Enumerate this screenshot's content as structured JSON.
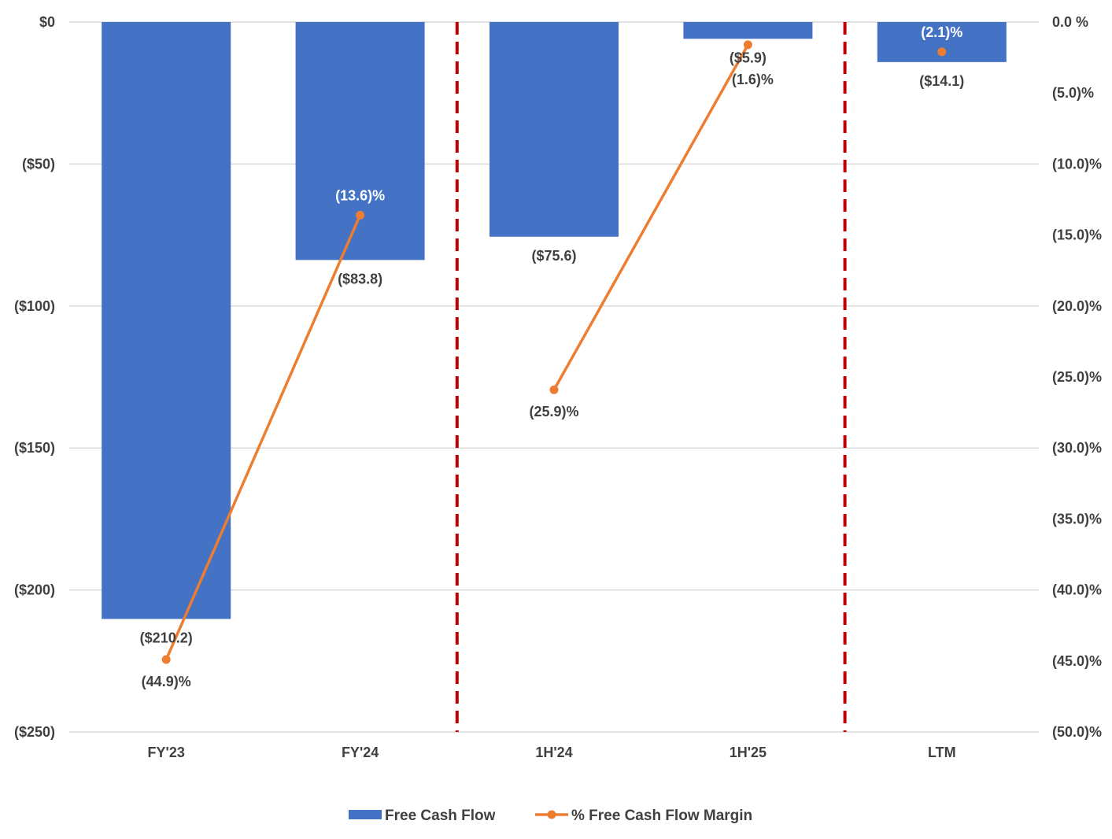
{
  "chart_data": {
    "type": "bar+line",
    "categories": [
      "FY'23",
      "FY'24",
      "1H'24",
      "1H'25",
      "LTM"
    ],
    "series": [
      {
        "name": "Free Cash Flow",
        "type": "bar",
        "axis": "left",
        "values": [
          -210.2,
          -83.8,
          -75.6,
          -5.9,
          -14.1
        ],
        "labels": [
          "($210.2)",
          "($83.8)",
          "($75.6)",
          "($5.9)",
          "($14.1)"
        ],
        "color": "#4472C4"
      },
      {
        "name": "% Free Cash Flow Margin",
        "type": "line",
        "axis": "right",
        "values": [
          -44.9,
          -13.6,
          -25.9,
          -1.6,
          -2.1
        ],
        "labels": [
          "(44.9)%",
          "(13.6)%",
          "(25.9)%",
          "(1.6)%",
          "(2.1)%"
        ],
        "segments": [
          [
            0,
            1
          ],
          [
            2,
            3
          ]
        ],
        "color": "#ED7D31"
      }
    ],
    "y_left": {
      "ylim": [
        -250,
        0
      ],
      "ticks": [
        0,
        -50,
        -100,
        -150,
        -200,
        -250
      ],
      "tick_labels": [
        "$0",
        "($50)",
        "($100)",
        "($150)",
        "($200)",
        "($250)"
      ]
    },
    "y_right": {
      "ylim": [
        -50,
        0
      ],
      "ticks": [
        0,
        -5,
        -10,
        -15,
        -20,
        -25,
        -30,
        -35,
        -40,
        -45,
        -50
      ],
      "tick_labels": [
        "0.0 %",
        "(5.0)%",
        "(10.0)%",
        "(15.0)%",
        "(20.0)%",
        "(25.0)%",
        "(30.0)%",
        "(35.0)%",
        "(40.0)%",
        "(45.0)%",
        "(50.0)%"
      ]
    },
    "separators_after_category": [
      1,
      3
    ],
    "separator_color": "#C00000",
    "grid": true,
    "legend": {
      "position": "bottom",
      "entries": [
        "Free Cash Flow",
        "% Free Cash Flow Margin"
      ]
    },
    "colors": {
      "grid": "#D9D9D9",
      "text": "#404040"
    }
  }
}
